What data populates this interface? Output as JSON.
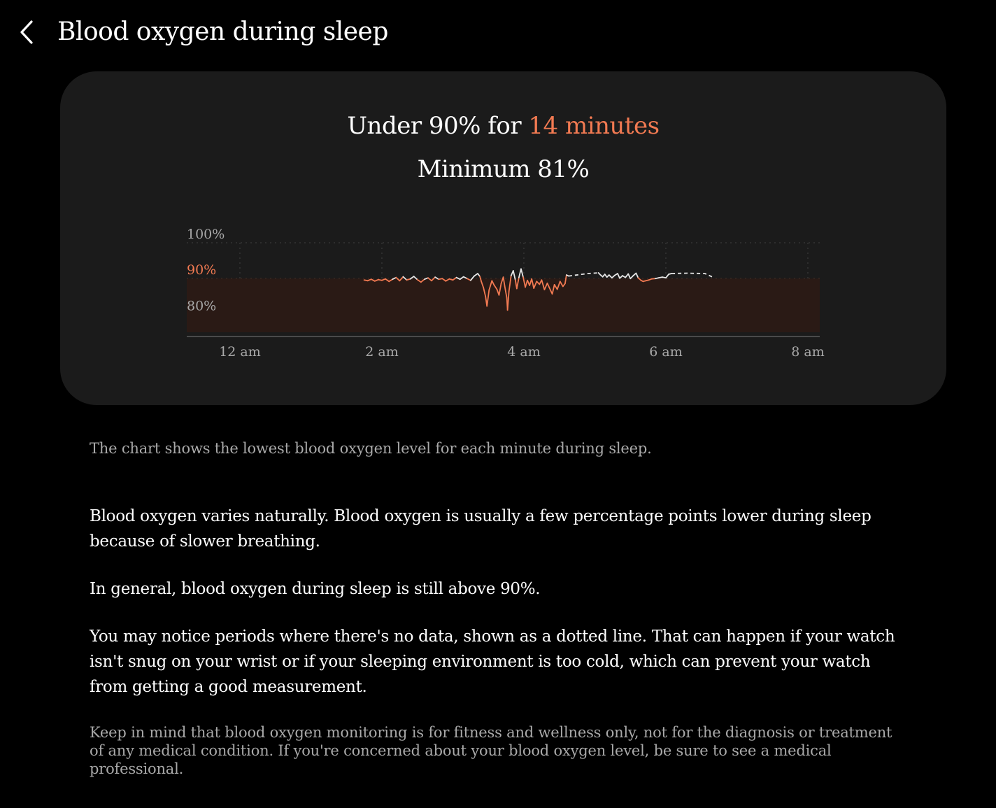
{
  "header": {
    "back_icon": "chevron-left-icon",
    "title": "Blood oxygen during sleep"
  },
  "summary": {
    "under_prefix": "Under 90% for ",
    "under_duration": "14 minutes",
    "minimum": "Minimum 81%"
  },
  "colors": {
    "accent": "#f27a52",
    "card_background": "#1b1b1b",
    "band_fill": "#2a1a15",
    "line_normal": "#e6e6e6"
  },
  "chart_data": {
    "type": "line",
    "title": "",
    "xlabel": "",
    "ylabel": "",
    "x_unit": "hours after midnight",
    "xlim": [
      0,
      8
    ],
    "ylim": [
      75,
      100
    ],
    "x_ticks": [
      {
        "value": 0,
        "label": "12 am"
      },
      {
        "value": 2,
        "label": "2 am"
      },
      {
        "value": 4,
        "label": "4 am"
      },
      {
        "value": 6,
        "label": "6 am"
      },
      {
        "value": 8,
        "label": "8 am"
      }
    ],
    "y_ticks": [
      {
        "value": 100,
        "label": "100%"
      },
      {
        "value": 90,
        "label": "90%",
        "highlight": true
      },
      {
        "value": 80,
        "label": "80%"
      }
    ],
    "threshold": 90,
    "below_threshold_band": [
      75,
      90
    ],
    "grid": true,
    "series": [
      {
        "style": "solid",
        "points": [
          [
            1.75,
            89.6
          ],
          [
            1.8,
            89.4
          ],
          [
            1.85,
            89.8
          ],
          [
            1.9,
            89.3
          ],
          [
            1.95,
            89.7
          ],
          [
            2.0,
            89.5
          ],
          [
            2.05,
            89.9
          ],
          [
            2.1,
            89.2
          ],
          [
            2.15,
            89.8
          ],
          [
            2.2,
            90.3
          ],
          [
            2.25,
            89.4
          ],
          [
            2.3,
            90.5
          ],
          [
            2.35,
            89.6
          ],
          [
            2.4,
            89.9
          ],
          [
            2.45,
            90.6
          ],
          [
            2.5,
            89.7
          ],
          [
            2.55,
            89.0
          ],
          [
            2.6,
            89.8
          ],
          [
            2.65,
            90.2
          ],
          [
            2.7,
            89.4
          ],
          [
            2.75,
            90.4
          ],
          [
            2.8,
            89.8
          ],
          [
            2.85,
            90.0
          ],
          [
            2.9,
            89.3
          ],
          [
            2.95,
            89.9
          ],
          [
            3.0,
            89.6
          ],
          [
            3.05,
            90.3
          ],
          [
            3.1,
            89.8
          ],
          [
            3.15,
            90.5
          ],
          [
            3.2,
            90.0
          ],
          [
            3.25,
            89.5
          ],
          [
            3.3,
            90.7
          ],
          [
            3.35,
            91.4
          ],
          [
            3.38,
            90.6
          ],
          [
            3.4,
            89.2
          ],
          [
            3.43,
            87.5
          ],
          [
            3.46,
            85.0
          ],
          [
            3.48,
            82.3
          ],
          [
            3.51,
            86.8
          ],
          [
            3.55,
            89.4
          ],
          [
            3.58,
            88.2
          ],
          [
            3.62,
            87.0
          ],
          [
            3.65,
            85.4
          ],
          [
            3.68,
            88.6
          ],
          [
            3.71,
            90.4
          ],
          [
            3.73,
            87.9
          ],
          [
            3.76,
            84.6
          ],
          [
            3.77,
            81.2
          ],
          [
            3.79,
            86.5
          ],
          [
            3.82,
            90.8
          ],
          [
            3.85,
            92.2
          ],
          [
            3.88,
            89.6
          ],
          [
            3.9,
            87.2
          ],
          [
            3.93,
            90.3
          ],
          [
            3.96,
            92.7
          ],
          [
            3.99,
            90.4
          ],
          [
            4.02,
            87.6
          ],
          [
            4.05,
            89.5
          ],
          [
            4.08,
            88.1
          ],
          [
            4.11,
            89.9
          ],
          [
            4.14,
            87.3
          ],
          [
            4.18,
            89.2
          ],
          [
            4.22,
            88.4
          ],
          [
            4.25,
            89.6
          ],
          [
            4.29,
            86.9
          ],
          [
            4.33,
            88.7
          ],
          [
            4.36,
            87.4
          ],
          [
            4.4,
            85.7
          ],
          [
            4.43,
            88.3
          ],
          [
            4.47,
            87.0
          ],
          [
            4.51,
            89.2
          ],
          [
            4.55,
            87.8
          ],
          [
            4.58,
            88.6
          ],
          [
            4.6,
            91.0
          ],
          [
            4.63,
            90.7
          ]
        ]
      },
      {
        "style": "dotted",
        "points": [
          [
            4.63,
            90.7
          ],
          [
            4.9,
            91.4
          ],
          [
            5.05,
            91.6
          ]
        ]
      },
      {
        "style": "solid",
        "points": [
          [
            5.05,
            91.6
          ],
          [
            5.08,
            91.0
          ],
          [
            5.11,
            90.5
          ],
          [
            5.14,
            91.2
          ],
          [
            5.17,
            90.4
          ],
          [
            5.2,
            91.0
          ],
          [
            5.24,
            90.2
          ],
          [
            5.28,
            90.9
          ],
          [
            5.32,
            91.4
          ],
          [
            5.35,
            90.1
          ],
          [
            5.39,
            90.8
          ],
          [
            5.43,
            90.3
          ],
          [
            5.47,
            91.3
          ],
          [
            5.5,
            90.0
          ],
          [
            5.54,
            90.8
          ],
          [
            5.58,
            91.5
          ],
          [
            5.61,
            90.2
          ],
          [
            5.65,
            89.5
          ],
          [
            5.68,
            89.2
          ],
          [
            5.72,
            89.4
          ],
          [
            5.76,
            89.6
          ],
          [
            5.8,
            89.9
          ],
          [
            5.85,
            90.0
          ],
          [
            5.9,
            90.2
          ],
          [
            5.95,
            90.4
          ],
          [
            6.0,
            90.2
          ],
          [
            6.04,
            91.2
          ],
          [
            6.08,
            91.4
          ]
        ]
      },
      {
        "style": "dotted",
        "points": [
          [
            6.08,
            91.4
          ],
          [
            6.3,
            91.5
          ],
          [
            6.55,
            91.4
          ],
          [
            6.65,
            90.5
          ]
        ]
      }
    ]
  },
  "texts": {
    "caption": "The chart shows the lowest blood oxygen level for each minute during sleep.",
    "para1": "Blood oxygen varies naturally. Blood oxygen is usually a few percentage points lower during sleep because of slower breathing.",
    "para2": "In general, blood oxygen during sleep is still above 90%.",
    "para3": "You may notice periods where there's no data, shown as a dotted line. That can happen if your watch isn't snug on your wrist or if your sleeping environment is too cold, which can prevent your watch from getting a good measurement.",
    "disclaimer": "Keep in mind that blood oxygen monitoring is for fitness and wellness only, not for the diagnosis or treatment of any medical condition. If you're concerned about your blood oxygen level, be sure to see a medical professional."
  }
}
